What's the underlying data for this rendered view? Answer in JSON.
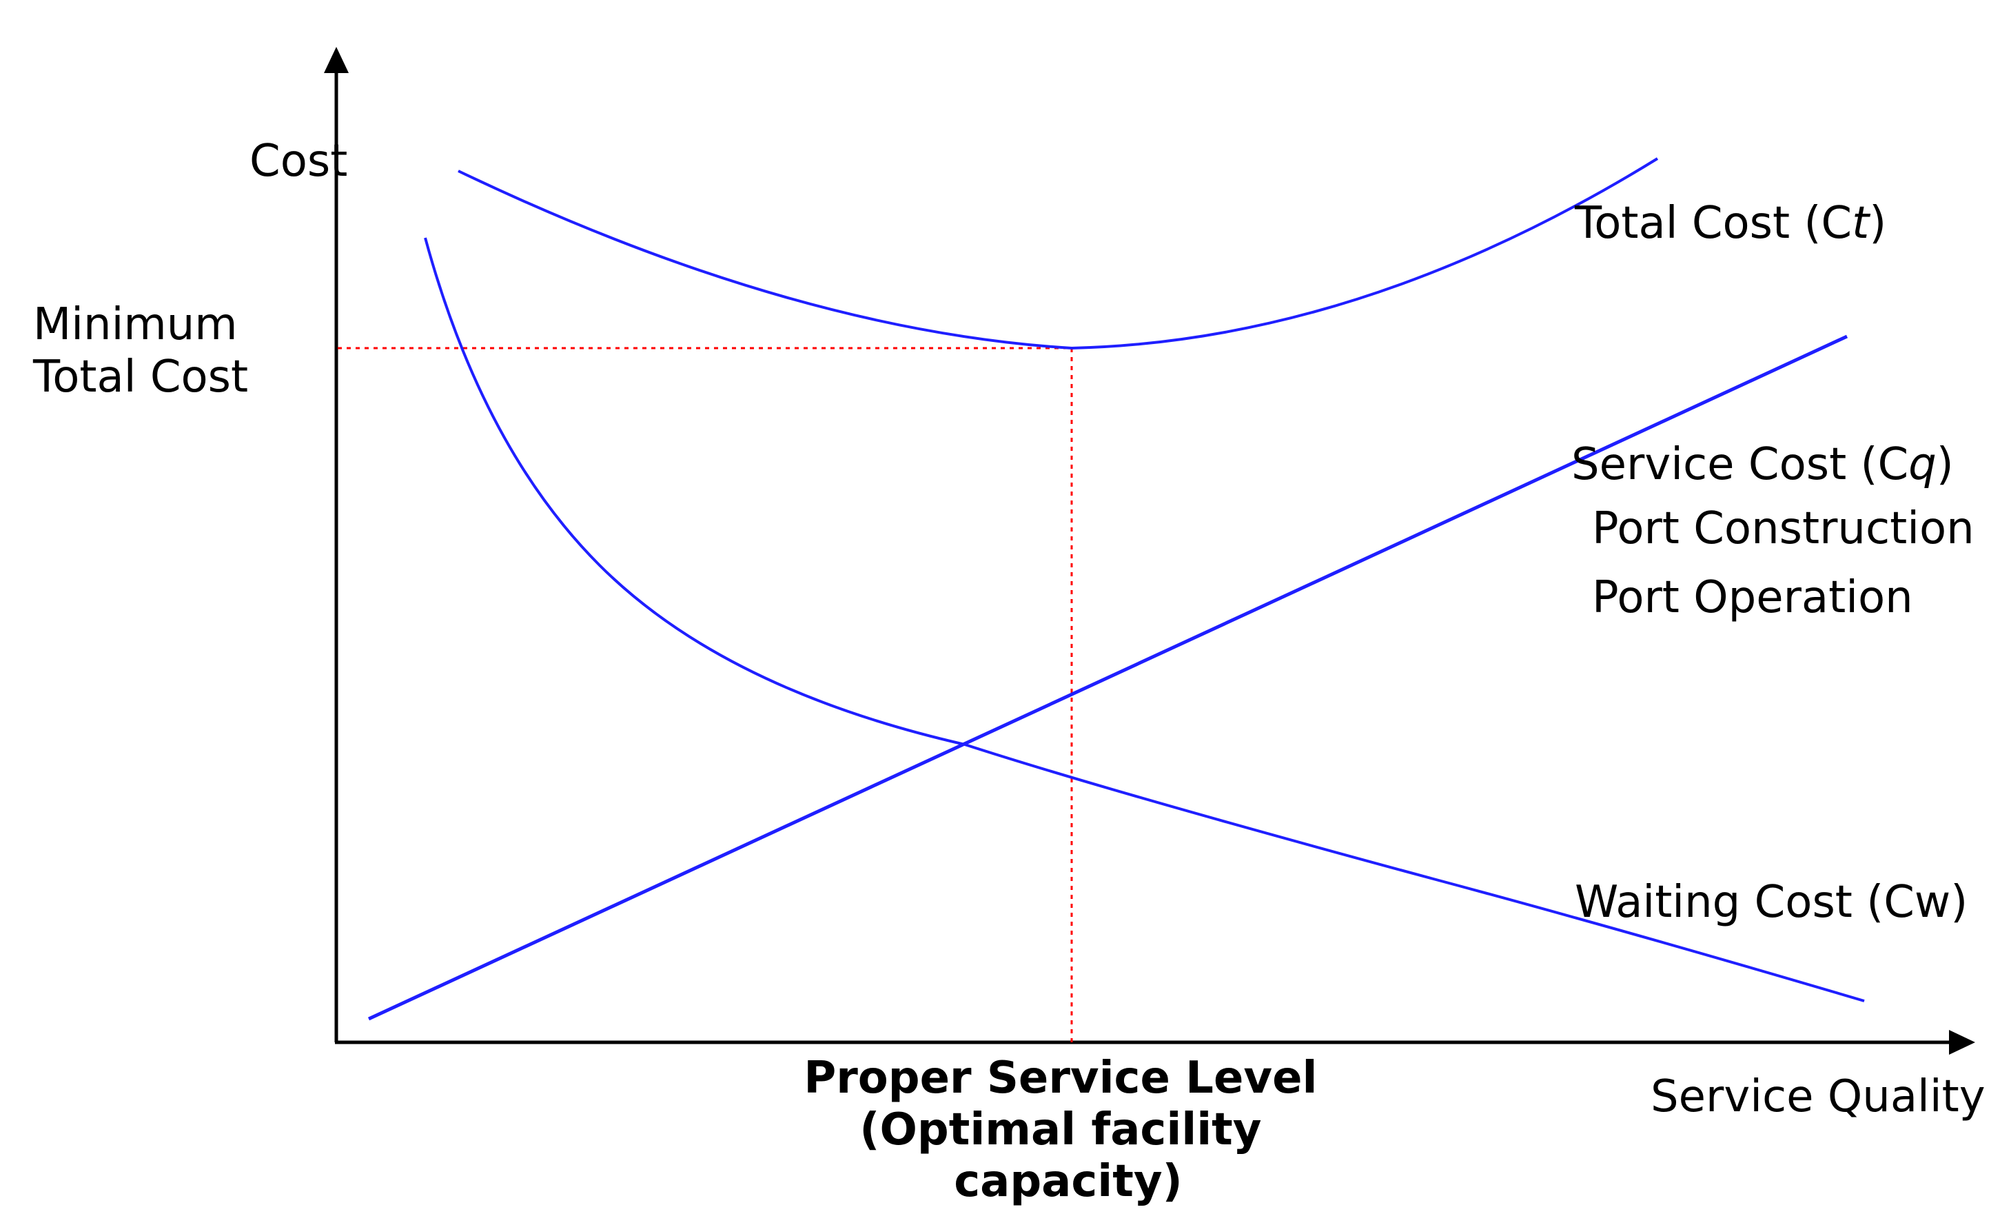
{
  "diagram": {
    "y_axis_label": "Cost",
    "x_axis_label": "Service Quality",
    "minimum_cost_label": [
      "Minimum",
      "Total Cost"
    ],
    "proper_level_label": [
      "Proper Service Level",
      "(Optimal facility",
      "capacity)"
    ],
    "total_cost_label": {
      "prefix": "Total Cost (C",
      "sub": "t",
      "suffix": ")"
    },
    "service_cost_label": {
      "prefix": "Service Cost (C",
      "sub": "q",
      "suffix": ")"
    },
    "service_cost_items": [
      "Port Construction",
      "Port Operation"
    ],
    "waiting_cost_label": "Waiting Cost (Cw)"
  },
  "colors": {
    "curve": "#1f1fff",
    "axis": "#000000",
    "guide": "#ff0000",
    "text": "#000000"
  }
}
